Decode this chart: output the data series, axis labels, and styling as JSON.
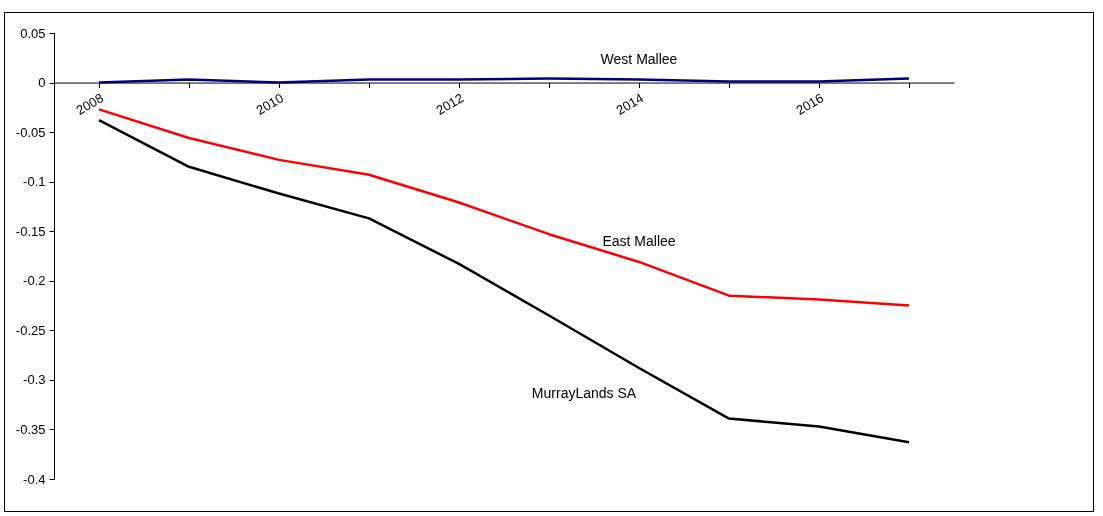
{
  "chart_data": {
    "type": "line",
    "categories": [
      "2008",
      null,
      "2010",
      null,
      "2012",
      null,
      "2014",
      null,
      "2016",
      null
    ],
    "series": [
      {
        "name": "West Mallee",
        "color": "#000080",
        "values": [
          0,
          0.003,
          0,
          0.003,
          0.003,
          0.004,
          0.003,
          0.001,
          0.001,
          0.004
        ]
      },
      {
        "name": "East Mallee",
        "color": "#ff0000",
        "values": [
          -0.027,
          -0.056,
          -0.078,
          -0.093,
          -0.121,
          -0.153,
          -0.181,
          -0.215,
          -0.219,
          -0.225
        ]
      },
      {
        "name": "MurrayLands SA",
        "color": "#000000",
        "values": [
          -0.038,
          -0.085,
          -0.112,
          -0.137,
          -0.183,
          -0.235,
          -0.288,
          -0.339,
          -0.347,
          -0.363
        ]
      }
    ],
    "ylim": [
      -0.4,
      0.05
    ],
    "yticks": [
      -0.4,
      -0.35,
      -0.3,
      -0.25,
      -0.2,
      -0.15,
      -0.1,
      -0.05,
      0,
      0.05
    ],
    "grid": false,
    "legend": false,
    "marker": "none",
    "line_style": "solid"
  }
}
